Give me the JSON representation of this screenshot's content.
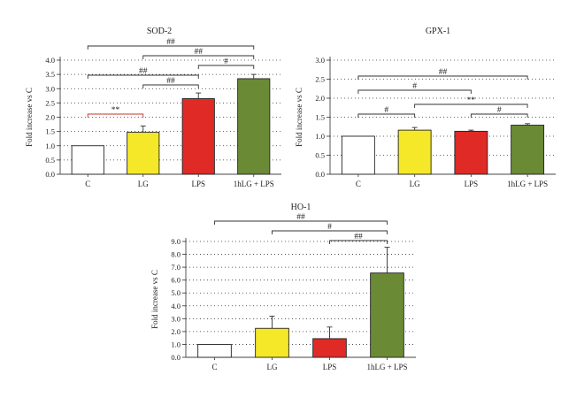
{
  "chart_data": [
    {
      "type": "bar",
      "title": "SOD-2",
      "ylabel": "Fold increase vs C",
      "xlabel": "",
      "categories": [
        "C",
        "LG",
        "LPS",
        "1hLG + LPS"
      ],
      "values": [
        1.0,
        1.47,
        2.65,
        3.35
      ],
      "errors": [
        0,
        0.22,
        0.2,
        0.15
      ],
      "colors": [
        "#ffffff",
        "#f4e829",
        "#e02a26",
        "#6b8a35"
      ],
      "ylim": [
        0,
        4.0
      ],
      "yticks": [
        "0.0",
        "0.5",
        "1.0",
        "1.5",
        "2.0",
        "2.5",
        "3.0",
        "3.5",
        "4.0"
      ],
      "grid": true,
      "significance": [
        {
          "from": 0,
          "to": 1,
          "label": "**",
          "color": "#c0392b"
        },
        {
          "from": 1,
          "to": 2,
          "label": "##",
          "color": "#333333"
        },
        {
          "from": 0,
          "to": 2,
          "label": "##",
          "color": "#333333"
        },
        {
          "from": 2,
          "to": 3,
          "label": "#",
          "color": "#333333"
        },
        {
          "from": 1,
          "to": 3,
          "label": "##",
          "color": "#333333"
        },
        {
          "from": 0,
          "to": 3,
          "label": "##",
          "color": "#333333"
        }
      ]
    },
    {
      "type": "bar",
      "title": "GPX-1",
      "ylabel": "Fold increase vs C",
      "xlabel": "",
      "categories": [
        "C",
        "LG",
        "LPS",
        "1hLG + LPS"
      ],
      "values": [
        1.0,
        1.16,
        1.13,
        1.29
      ],
      "errors": [
        0,
        0.07,
        0.03,
        0.04
      ],
      "colors": [
        "#ffffff",
        "#f4e829",
        "#e02a26",
        "#6b8a35"
      ],
      "ylim": [
        0,
        3.0
      ],
      "yticks": [
        "0.0",
        "0.5",
        "1.0",
        "1.5",
        "2.0",
        "2.5",
        "3.0"
      ],
      "grid": true,
      "significance": [
        {
          "from": 0,
          "to": 1,
          "label": "#",
          "color": "#333333"
        },
        {
          "from": 2,
          "to": 3,
          "label": "#",
          "color": "#333333"
        },
        {
          "from": 1,
          "to": 3,
          "label": "**",
          "color": "#333333"
        },
        {
          "from": 0,
          "to": 2,
          "label": "#",
          "color": "#333333"
        },
        {
          "from": 0,
          "to": 3,
          "label": "##",
          "color": "#333333"
        }
      ]
    },
    {
      "type": "bar",
      "title": "HO-1",
      "ylabel": "Fold increase vs C",
      "xlabel": "",
      "categories": [
        "C",
        "LG",
        "LPS",
        "1hLG + LPS"
      ],
      "values": [
        1.0,
        2.25,
        1.45,
        6.55
      ],
      "errors": [
        0,
        0.95,
        0.9,
        2.0
      ],
      "colors": [
        "#ffffff",
        "#f4e829",
        "#e02a26",
        "#6b8a35"
      ],
      "ylim": [
        0,
        9.0
      ],
      "yticks": [
        "0.0",
        "1.0",
        "2.0",
        "3.0",
        "4.0",
        "5.0",
        "6.0",
        "7.0",
        "8.0",
        "9.0"
      ],
      "grid": true,
      "significance": [
        {
          "from": 2,
          "to": 3,
          "label": "##",
          "color": "#333333"
        },
        {
          "from": 1,
          "to": 3,
          "label": "#",
          "color": "#333333"
        },
        {
          "from": 0,
          "to": 3,
          "label": "##",
          "color": "#333333"
        }
      ]
    }
  ]
}
